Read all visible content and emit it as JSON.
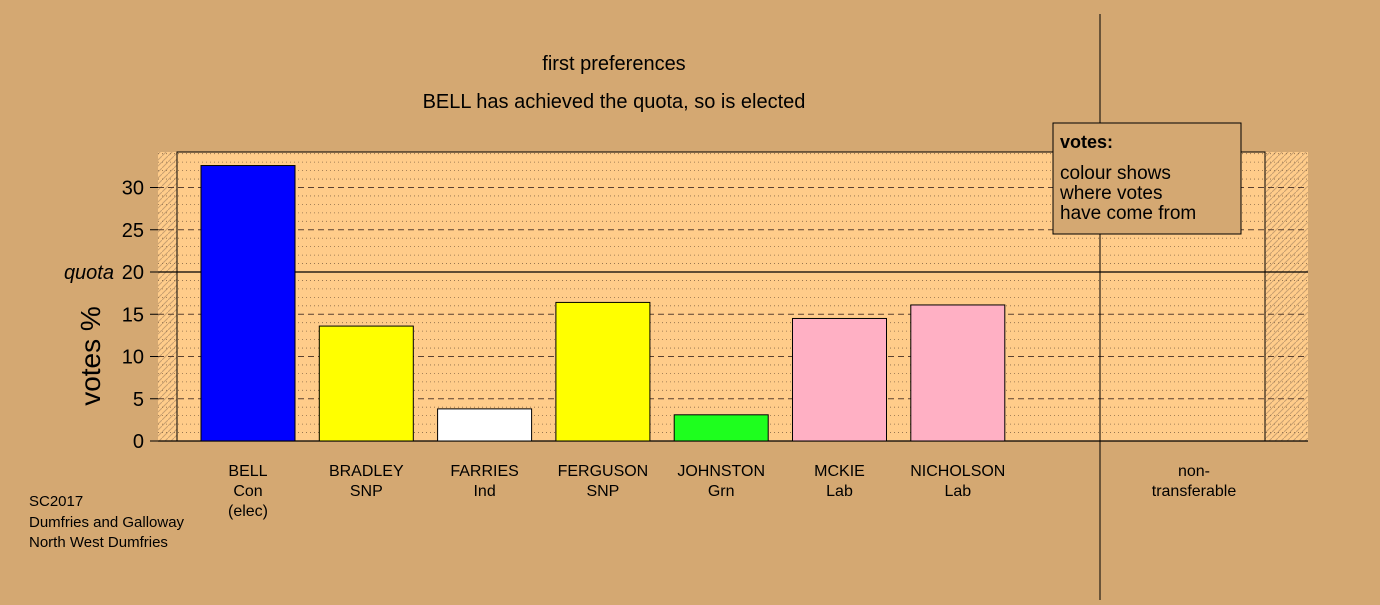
{
  "chart_data": {
    "type": "bar",
    "title": "first preferences",
    "subtitle": "BELL has achieved the quota, so is elected",
    "ylabel": "votes %",
    "ylim": [
      0,
      35
    ],
    "yticks": [
      0,
      5,
      10,
      15,
      20,
      25,
      30
    ],
    "quota": 20,
    "quota_label": "quota",
    "categories": [
      {
        "name": "BELL",
        "party": "Con",
        "note": "(elec)",
        "value": 32.6,
        "color": "#0000FF"
      },
      {
        "name": "BRADLEY",
        "party": "SNP",
        "note": "",
        "value": 13.6,
        "color": "#FFFF00"
      },
      {
        "name": "FARRIES",
        "party": "Ind",
        "note": "",
        "value": 3.8,
        "color": "#FFFFFF"
      },
      {
        "name": "FERGUSON",
        "party": "SNP",
        "note": "",
        "value": 16.4,
        "color": "#FFFF00"
      },
      {
        "name": "JOHNSTON",
        "party": "Grn",
        "note": "",
        "value": 3.1,
        "color": "#1EFF1E"
      },
      {
        "name": "MCKIE",
        "party": "Lab",
        "note": "",
        "value": 14.5,
        "color": "#FFB0C4"
      },
      {
        "name": "NICHOLSON",
        "party": "Lab",
        "note": "",
        "value": 16.1,
        "color": "#FFB0C4"
      }
    ],
    "nontransferable": {
      "label_line1": "non-",
      "label_line2": "transferable",
      "value": 0
    },
    "legend": {
      "title": "votes:",
      "lines": [
        "colour shows",
        "where votes",
        "have come from"
      ],
      "placement": "top-right"
    },
    "grid": true
  },
  "caption": {
    "lines": [
      "SC2017",
      "Dumfries and Galloway",
      "North West Dumfries"
    ]
  },
  "colors": {
    "background": "#D4A872",
    "plot_area": "#FFCC8A",
    "plot_area_shaded": "#DDAF78"
  }
}
